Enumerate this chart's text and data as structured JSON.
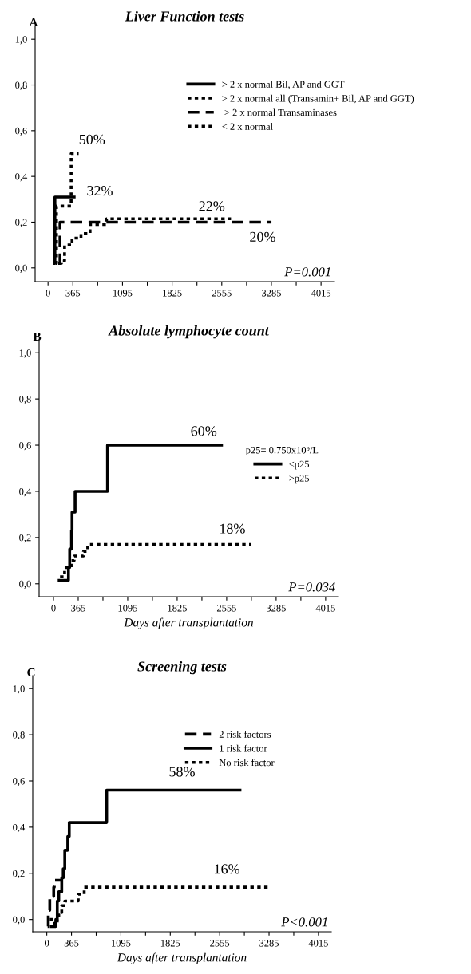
{
  "chart_data": [
    {
      "type": "step",
      "title": "Liver Function tests",
      "xlim": [
        -190,
        4213
      ],
      "ylim": [
        -0.06,
        1.06
      ],
      "xticks": [
        0,
        365,
        {
          "value": 730,
          "label": null
        },
        1095,
        {
          "value": 1460,
          "label": null
        },
        1825,
        {
          "value": 2190,
          "label": null
        },
        2555,
        {
          "value": 2920,
          "label": null
        },
        3285,
        {
          "value": 3650,
          "label": null
        },
        4015
      ],
      "yticks": [
        {
          "value": 0.0,
          "label": "0,0"
        },
        {
          "value": 0.2,
          "label": "0,2"
        },
        {
          "value": 0.4,
          "label": "0,4"
        },
        {
          "value": 0.6,
          "label": "0,6"
        },
        {
          "value": 0.8,
          "label": "0,8"
        },
        {
          "value": 1.0,
          "label": "1,0"
        }
      ],
      "grid": false,
      "legend": "top right",
      "series": [
        {
          "name": "> 2 x normal Bil, AP and GGT",
          "color": "#000000",
          "line_style": "solid",
          "x": [
            100,
            101,
            384
          ],
          "values": [
            0.02,
            0.31,
            0.31
          ]
        },
        {
          "name": "> 2 x normal all (Transamin+ Bil, AP and GGT)",
          "color": "#000000",
          "line_style": "dotted",
          "x": [
            110,
            124,
            340,
            450
          ],
          "values": [
            0.02,
            0.27,
            0.5,
            0.5
          ]
        },
        {
          "name": " > 2 x normal Transaminases",
          "color": "#000000",
          "line_style": "dashed",
          "x": [
            150,
            176,
            3286
          ],
          "values": [
            0.02,
            0.2,
            0.2
          ]
        },
        {
          "name": "< 2 x normal",
          "color": "#000000",
          "line_style": "dotted",
          "x": [
            150,
            198,
            243,
            353,
            485,
            618,
            794,
            860,
            2691
          ],
          "values": [
            0.02,
            0.03,
            0.1,
            0.13,
            0.15,
            0.19,
            0.19,
            0.215,
            0.215
          ]
        }
      ],
      "annotations": [
        "A",
        "P=0.001",
        "50%",
        "32%",
        "22%",
        "20%"
      ]
    },
    {
      "type": "step",
      "title": "Absolute lymphocyte count",
      "xlabel": "Days after transplantation",
      "xlim": [
        -212,
        4205
      ],
      "ylim": [
        -0.056,
        1.056
      ],
      "xticks": [
        0,
        365,
        {
          "value": 730,
          "label": null
        },
        1095,
        {
          "value": 1460,
          "label": null
        },
        1825,
        {
          "value": 2190,
          "label": null
        },
        2555,
        {
          "value": 2920,
          "label": null
        },
        3285,
        {
          "value": 3650,
          "label": null
        },
        4015
      ],
      "yticks": [
        {
          "value": 0.0,
          "label": "0,0"
        },
        {
          "value": 0.2,
          "label": "0,2"
        },
        {
          "value": 0.4,
          "label": "0,4"
        },
        {
          "value": 0.6,
          "label": "0,6"
        },
        {
          "value": 0.8,
          "label": "0,8"
        },
        {
          "value": 1.0,
          "label": "1,0"
        }
      ],
      "grid": false,
      "legend": "right",
      "legend_title": "p25= 0.750x10⁹/L",
      "series": [
        {
          "name": "<p25",
          "color": "#000000",
          "line_style": "solid",
          "x": [
            84,
            221,
            239,
            266,
            274,
            319,
            797,
            2479
          ],
          "values": [
            0.015,
            0.07,
            0.15,
            0.23,
            0.31,
            0.4,
            0.6,
            0.6
          ]
        },
        {
          "name": ">p25",
          "color": "#000000",
          "line_style": "dotted",
          "x": [
            97,
            164,
            261,
            305,
            443,
            505,
            2921
          ],
          "values": [
            0.03,
            0.07,
            0.1,
            0.12,
            0.14,
            0.17,
            0.17
          ]
        }
      ],
      "annotations": [
        "B",
        "P=0.034",
        "60%",
        "18%"
      ]
    },
    {
      "type": "step",
      "title": "Screening tests",
      "xlabel": "Days after transplantation",
      "xlim": [
        -208,
        4205
      ],
      "ylim": [
        -0.053,
        1.056
      ],
      "xticks": [
        0,
        365,
        {
          "value": 730,
          "label": null
        },
        1095,
        {
          "value": 1460,
          "label": null
        },
        1825,
        {
          "value": 2190,
          "label": null
        },
        2555,
        {
          "value": 2920,
          "label": null
        },
        3285,
        {
          "value": 3650,
          "label": null
        },
        4015
      ],
      "yticks": [
        {
          "value": 0.0,
          "label": "0,0"
        },
        {
          "value": 0.2,
          "label": "0,2"
        },
        {
          "value": 0.4,
          "label": "0,4"
        },
        {
          "value": 0.6,
          "label": "0,6"
        },
        {
          "value": 0.8,
          "label": "0,8"
        },
        {
          "value": 1.0,
          "label": "1,0"
        }
      ],
      "grid": false,
      "legend": "top right",
      "series": [
        {
          "name": "2 risk factors",
          "color": "#000000",
          "line_style": "dashed",
          "x": [
            13,
            22,
            44,
            102,
            111,
            221
          ],
          "values": [
            -0.03,
            0.04,
            0.1,
            0.14,
            0.17,
            0.17
          ]
        },
        {
          "name": "1 risk factor",
          "color": "#000000",
          "line_style": "solid",
          "x": [
            66,
            133,
            155,
            177,
            221,
            243,
            266,
            310,
            332,
            885,
            2855
          ],
          "values": [
            -0.03,
            0.0,
            0.08,
            0.12,
            0.18,
            0.22,
            0.3,
            0.36,
            0.42,
            0.56,
            0.56
          ]
        },
        {
          "name": "No risk factor",
          "color": "#000000",
          "line_style": "dotted",
          "x": [
            44,
            111,
            155,
            177,
            221,
            266,
            398,
            465,
            553,
            3320
          ],
          "values": [
            0.0,
            -0.02,
            0.0,
            0.03,
            0.06,
            0.08,
            0.08,
            0.11,
            0.14,
            0.14
          ]
        }
      ],
      "annotations": [
        "C",
        "P<0.001",
        "58%",
        "16%"
      ]
    }
  ]
}
